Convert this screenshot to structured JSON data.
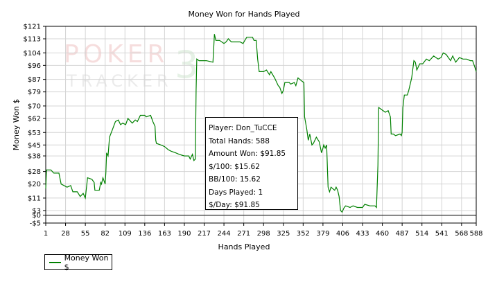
{
  "chart_data": {
    "type": "line",
    "title": "Money Won for Hands Played",
    "xlabel": "Hands Played",
    "ylabel": "Money Won $",
    "xlim": [
      1,
      588
    ],
    "ylim": [
      -5,
      121
    ],
    "x_ticks": [
      1,
      28,
      55,
      82,
      109,
      136,
      163,
      190,
      217,
      244,
      271,
      298,
      325,
      352,
      379,
      406,
      433,
      460,
      487,
      514,
      541,
      568,
      588
    ],
    "y_ticks": [
      {
        "value": 121,
        "label": "$121"
      },
      {
        "value": 113,
        "label": "$113"
      },
      {
        "value": 104,
        "label": "$104"
      },
      {
        "value": 96,
        "label": "$96"
      },
      {
        "value": 87,
        "label": "$87"
      },
      {
        "value": 79,
        "label": "$79"
      },
      {
        "value": 70,
        "label": "$70"
      },
      {
        "value": 62,
        "label": "$62"
      },
      {
        "value": 53,
        "label": "$53"
      },
      {
        "value": 45,
        "label": "$45"
      },
      {
        "value": 38,
        "label": "$38"
      },
      {
        "value": 28,
        "label": "$28"
      },
      {
        "value": 20,
        "label": "$20"
      },
      {
        "value": 11,
        "label": "$11"
      },
      {
        "value": 3,
        "label": "$3"
      },
      {
        "value": 0,
        "label": "$0"
      },
      {
        "value": -5,
        "label": "-$5"
      }
    ],
    "grid": true,
    "legend_position": "bottom-left",
    "series": [
      {
        "name": "Money Won $",
        "color": "#008000",
        "points": [
          [
            1,
            17
          ],
          [
            2,
            29
          ],
          [
            8,
            29
          ],
          [
            12,
            27
          ],
          [
            19,
            27
          ],
          [
            22,
            20
          ],
          [
            30,
            18
          ],
          [
            35,
            19
          ],
          [
            38,
            15
          ],
          [
            44,
            15
          ],
          [
            48,
            12
          ],
          [
            52,
            14
          ],
          [
            55,
            11
          ],
          [
            58,
            24
          ],
          [
            64,
            23
          ],
          [
            67,
            21
          ],
          [
            68,
            16
          ],
          [
            74,
            16
          ],
          [
            76,
            21
          ],
          [
            77,
            20
          ],
          [
            79,
            24
          ],
          [
            82,
            20
          ],
          [
            83,
            27
          ],
          [
            84,
            40
          ],
          [
            86,
            38
          ],
          [
            88,
            50
          ],
          [
            92,
            55
          ],
          [
            96,
            60
          ],
          [
            100,
            61
          ],
          [
            103,
            58
          ],
          [
            106,
            59
          ],
          [
            110,
            58
          ],
          [
            113,
            62
          ],
          [
            115,
            61
          ],
          [
            119,
            59
          ],
          [
            123,
            61
          ],
          [
            126,
            60
          ],
          [
            130,
            64
          ],
          [
            136,
            64
          ],
          [
            138,
            63
          ],
          [
            144,
            64
          ],
          [
            147,
            60
          ],
          [
            150,
            57
          ],
          [
            151,
            48
          ],
          [
            152,
            46
          ],
          [
            158,
            45
          ],
          [
            163,
            44
          ],
          [
            168,
            42
          ],
          [
            172,
            41
          ],
          [
            178,
            40
          ],
          [
            183,
            39
          ],
          [
            190,
            38
          ],
          [
            196,
            38
          ],
          [
            198,
            36
          ],
          [
            201,
            39
          ],
          [
            203,
            35
          ],
          [
            205,
            36
          ],
          [
            206,
            80
          ],
          [
            207,
            100
          ],
          [
            210,
            99
          ],
          [
            220,
            99
          ],
          [
            229,
            98
          ],
          [
            230,
            107
          ],
          [
            231,
            116
          ],
          [
            233,
            112
          ],
          [
            238,
            112
          ],
          [
            244,
            110
          ],
          [
            247,
            111
          ],
          [
            250,
            113
          ],
          [
            254,
            111
          ],
          [
            260,
            111
          ],
          [
            266,
            111
          ],
          [
            270,
            110
          ],
          [
            275,
            114
          ],
          [
            283,
            114
          ],
          [
            285,
            112
          ],
          [
            288,
            112
          ],
          [
            290,
            100
          ],
          [
            292,
            92
          ],
          [
            298,
            92
          ],
          [
            302,
            93
          ],
          [
            306,
            90
          ],
          [
            308,
            92
          ],
          [
            313,
            88
          ],
          [
            318,
            83
          ],
          [
            320,
            82
          ],
          [
            323,
            78
          ],
          [
            325,
            80
          ],
          [
            327,
            85
          ],
          [
            333,
            85
          ],
          [
            335,
            84
          ],
          [
            340,
            85
          ],
          [
            342,
            83
          ],
          [
            345,
            88
          ],
          [
            350,
            86
          ],
          [
            353,
            85
          ],
          [
            354,
            63
          ],
          [
            357,
            55
          ],
          [
            359,
            48
          ],
          [
            361,
            52
          ],
          [
            364,
            45
          ],
          [
            366,
            46
          ],
          [
            370,
            50
          ],
          [
            374,
            47
          ],
          [
            377,
            40
          ],
          [
            379,
            43
          ],
          [
            380,
            45
          ],
          [
            382,
            43
          ],
          [
            384,
            45
          ],
          [
            386,
            18
          ],
          [
            388,
            15
          ],
          [
            390,
            18
          ],
          [
            395,
            16
          ],
          [
            397,
            18
          ],
          [
            399,
            16
          ],
          [
            401,
            12
          ],
          [
            403,
            3
          ],
          [
            405,
            2
          ],
          [
            408,
            5
          ],
          [
            410,
            6
          ],
          [
            416,
            5
          ],
          [
            420,
            6
          ],
          [
            426,
            5
          ],
          [
            433,
            5
          ],
          [
            436,
            7
          ],
          [
            443,
            6
          ],
          [
            450,
            6
          ],
          [
            452,
            5
          ],
          [
            454,
            32
          ],
          [
            455,
            69
          ],
          [
            458,
            68
          ],
          [
            464,
            66
          ],
          [
            468,
            67
          ],
          [
            471,
            63
          ],
          [
            472,
            52
          ],
          [
            475,
            52
          ],
          [
            478,
            51
          ],
          [
            484,
            52
          ],
          [
            486,
            51
          ],
          [
            487,
            53
          ],
          [
            488,
            69
          ],
          [
            490,
            77
          ],
          [
            494,
            77
          ],
          [
            496,
            80
          ],
          [
            500,
            88
          ],
          [
            503,
            99
          ],
          [
            505,
            98
          ],
          [
            507,
            93
          ],
          [
            511,
            97
          ],
          [
            515,
            97
          ],
          [
            520,
            100
          ],
          [
            524,
            99
          ],
          [
            530,
            102
          ],
          [
            536,
            100
          ],
          [
            540,
            101
          ],
          [
            543,
            104
          ],
          [
            547,
            103
          ],
          [
            553,
            99
          ],
          [
            556,
            102
          ],
          [
            560,
            98
          ],
          [
            565,
            101
          ],
          [
            570,
            100
          ],
          [
            575,
            100
          ],
          [
            580,
            99
          ],
          [
            583,
            99
          ],
          [
            586,
            95
          ],
          [
            588,
            92
          ]
        ]
      }
    ]
  },
  "watermark": {
    "line1": "POKER",
    "line2": "TRACKER",
    "numeral": "3"
  },
  "info_box": {
    "player": "Player: Don_TuCCE",
    "total_hands": "Total Hands: 588",
    "amount_won": "Amount Won: $91.85",
    "per_100": "$/100: $15.62",
    "bb_100": "BB/100: 15.62",
    "days_played": "Days Played: 1",
    "per_day": "$/Day: $91.85"
  },
  "legend": {
    "label": "Money Won $"
  }
}
